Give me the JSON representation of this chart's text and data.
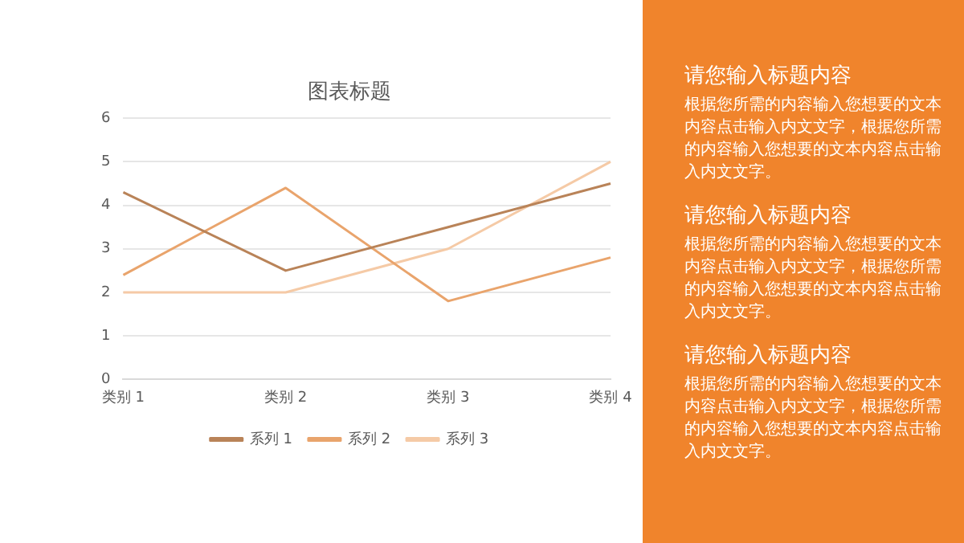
{
  "chart_data": {
    "type": "line",
    "title": "图表标题",
    "categories": [
      "类别 1",
      "类别 2",
      "类别 3",
      "类别 4"
    ],
    "series": [
      {
        "name": "系列 1",
        "color": "#b98358",
        "values": [
          4.3,
          2.5,
          3.5,
          4.5
        ]
      },
      {
        "name": "系列 2",
        "color": "#e9a46c",
        "values": [
          2.4,
          4.4,
          1.8,
          2.8
        ]
      },
      {
        "name": "系列 3",
        "color": "#f5caa6",
        "values": [
          2,
          2,
          3,
          5
        ]
      }
    ],
    "ylim": [
      0,
      6
    ],
    "yticks": [
      0,
      1,
      2,
      3,
      4,
      5,
      6
    ],
    "grid": "y",
    "legend": "bottom",
    "marker": "none",
    "line_style": "solid",
    "annotations": [
      "请您输入标题内容",
      "根据您所需的内容输入您想要的文本内容点击输入内文文字，根据您所需的内容输入您想要的文本内容点击输入内文文字。",
      "请您输入标题内容",
      "根据您所需的内容输入您想要的文本内容点击输入内文文字，根据您所需的内容输入您想要的文本内容点击输入内文文字。",
      "请您输入标题内容",
      "根据您所需的内容输入您想要的文本内容点击输入内文文字，根据您所需的内容输入您想要的文本内容点击输入内文文字。"
    ]
  }
}
